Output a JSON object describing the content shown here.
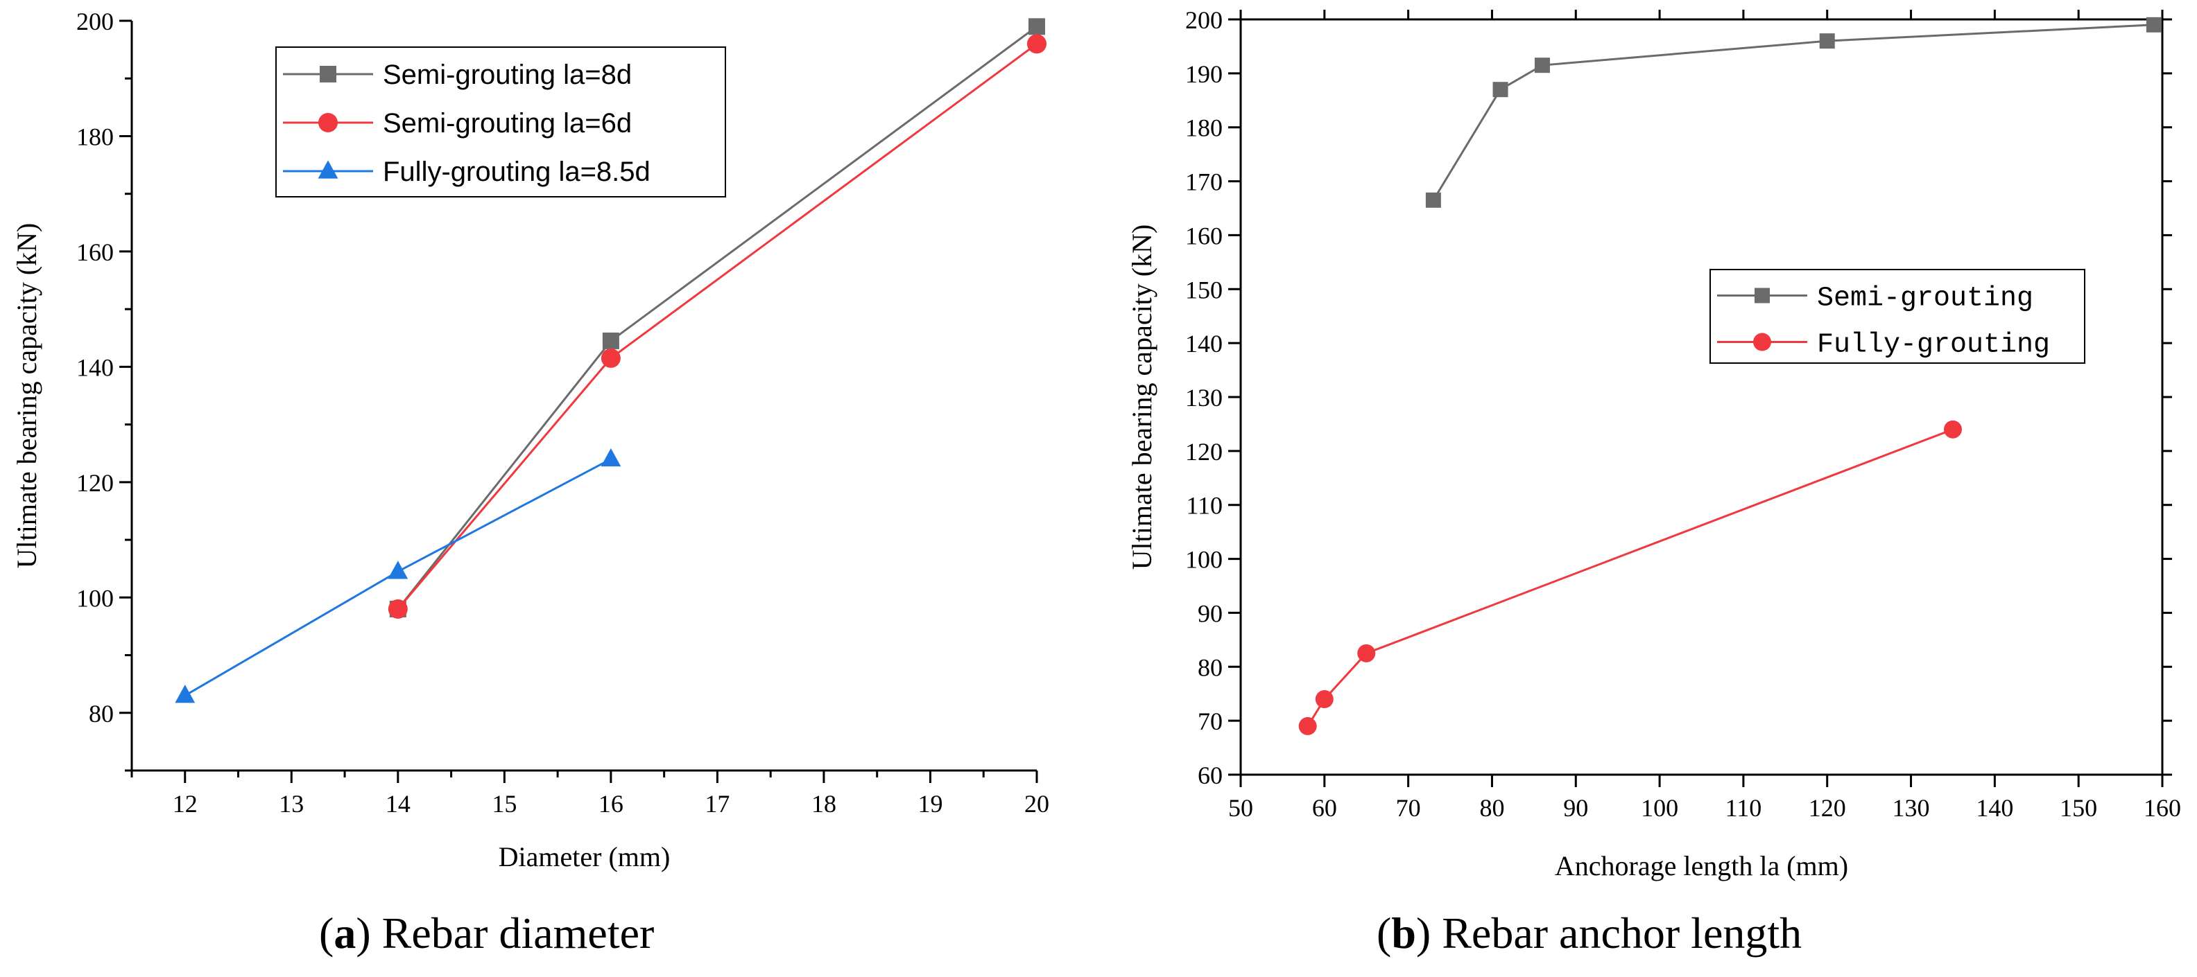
{
  "chart_data": [
    {
      "type": "line",
      "xlabel": "Diameter (mm)",
      "ylabel": "Ultimate bearing capacity (kN)",
      "xlim": [
        11.5,
        20
      ],
      "ylim": [
        70,
        200
      ],
      "xticks": [
        12,
        13,
        14,
        15,
        16,
        17,
        18,
        19,
        20
      ],
      "yticks": [
        80,
        100,
        120,
        140,
        160,
        180,
        200
      ],
      "legend_position": "top-center",
      "caption_letter": "(a)",
      "caption_text": "Rebar diameter",
      "series": [
        {
          "name": "Semi-grouting la=8d",
          "color": "#6b6b6b",
          "marker": "square",
          "x": [
            14,
            16,
            20
          ],
          "y": [
            98,
            144.5,
            199
          ]
        },
        {
          "name": "Semi-grouting la=6d",
          "color": "#f0383e",
          "marker": "circle",
          "x": [
            14,
            16,
            20
          ],
          "y": [
            98,
            141.5,
            196
          ]
        },
        {
          "name": "Fully-grouting la=8.5d",
          "color": "#1f78e0",
          "marker": "triangle",
          "x": [
            12,
            14,
            16
          ],
          "y": [
            83,
            104.5,
            124
          ]
        }
      ]
    },
    {
      "type": "line",
      "xlabel": "Anchorage length la (mm)",
      "ylabel": "Ultimate bearing capacity (kN)",
      "xlim": [
        50,
        160
      ],
      "ylim": [
        60,
        200
      ],
      "xticks": [
        50,
        60,
        70,
        80,
        90,
        100,
        110,
        120,
        130,
        140,
        150,
        160
      ],
      "yticks": [
        60,
        70,
        80,
        90,
        100,
        110,
        120,
        130,
        140,
        150,
        160,
        170,
        180,
        190,
        200
      ],
      "legend_position": "center-right",
      "caption_letter": "(b)",
      "caption_text": "Rebar anchor length",
      "series": [
        {
          "name": "Semi-grouting",
          "color": "#6b6b6b",
          "marker": "square",
          "x": [
            73,
            81,
            86,
            120,
            159
          ],
          "y": [
            166.5,
            187,
            191.5,
            196,
            199
          ]
        },
        {
          "name": "Fully-grouting",
          "color": "#f0383e",
          "marker": "circle",
          "x": [
            58,
            60,
            65,
            135
          ],
          "y": [
            69,
            74,
            82.5,
            124
          ]
        }
      ]
    }
  ]
}
